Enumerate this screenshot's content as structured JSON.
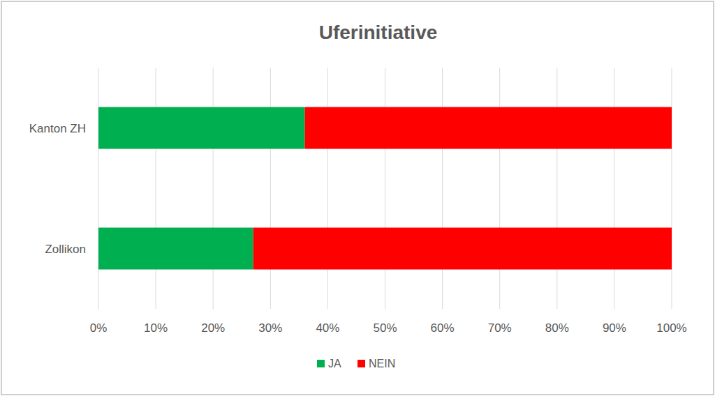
{
  "chart_data": {
    "type": "bar",
    "title": "Uferinitiative",
    "orientation": "horizontal",
    "stacked": true,
    "categories": [
      "Kanton ZH",
      "Zollikon"
    ],
    "series": [
      {
        "name": "JA",
        "color": "#00b050",
        "values": [
          36,
          27
        ]
      },
      {
        "name": "NEIN",
        "color": "#ff0000",
        "values": [
          64,
          73
        ]
      }
    ],
    "xlim": [
      0,
      100
    ],
    "xticks": [
      {
        "value": 0,
        "label": "0%"
      },
      {
        "value": 10,
        "label": "10%"
      },
      {
        "value": 20,
        "label": "20%"
      },
      {
        "value": 30,
        "label": "30%"
      },
      {
        "value": 40,
        "label": "40%"
      },
      {
        "value": 50,
        "label": "50%"
      },
      {
        "value": 60,
        "label": "60%"
      },
      {
        "value": 70,
        "label": "70%"
      },
      {
        "value": 80,
        "label": "80%"
      },
      {
        "value": 90,
        "label": "90%"
      },
      {
        "value": 100,
        "label": "100%"
      }
    ],
    "grid": true,
    "legend": "bottom"
  }
}
